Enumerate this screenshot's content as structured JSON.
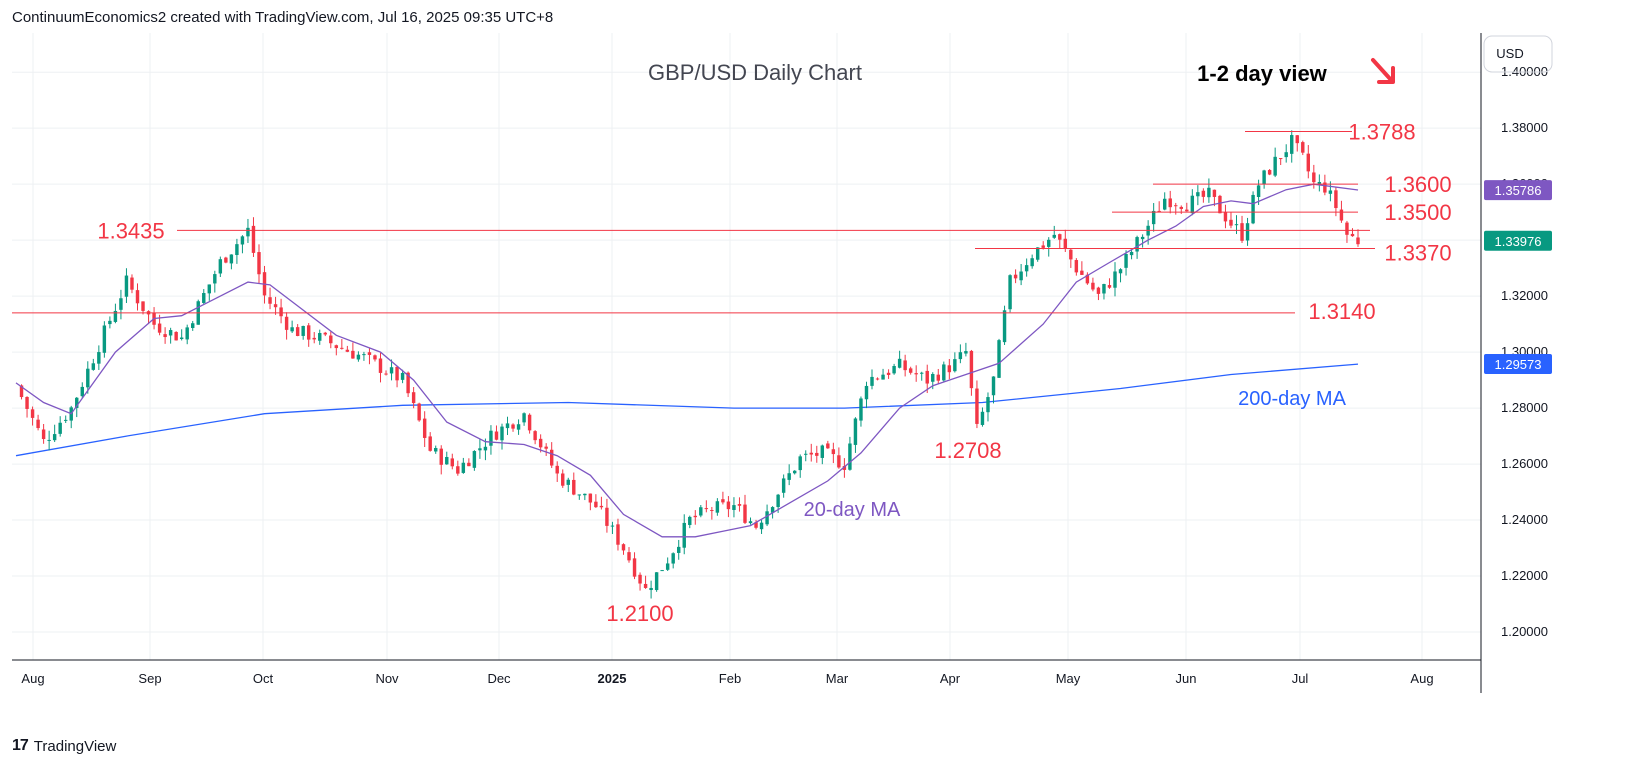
{
  "header": {
    "attribution": "ContinuumEconomics2 created with TradingView.com, Jul 16, 2025 09:35 UTC+8"
  },
  "footer": {
    "logo_glyph": "17",
    "brand": "TradingView"
  },
  "colors": {
    "up": "#089981",
    "down": "#f23645",
    "ma20": "#7e57c2",
    "ma200": "#2962ff",
    "level_line": "#f23645",
    "level_text": "#f23645",
    "price_tag": "#089981",
    "grid": "#eef0f3"
  },
  "chart_data": {
    "type": "candlestick",
    "title": "GBP/USD Daily Chart",
    "view_text": "1-2 day view",
    "view_direction": "down",
    "currency": "USD",
    "x_ticks": [
      "Aug",
      "Sep",
      "Oct",
      "Nov",
      "Dec",
      "2025",
      "Feb",
      "Mar",
      "Apr",
      "May",
      "Jun",
      "Jul",
      "Aug"
    ],
    "ylim": [
      1.19,
      1.414
    ],
    "y_ticks": [
      "1.40000",
      "1.38000",
      "1.36000",
      "1.34000",
      "1.32000",
      "1.30000",
      "1.28000",
      "1.26000",
      "1.24000",
      "1.22000",
      "1.20000"
    ],
    "grid": true,
    "levels": [
      {
        "label": "1.3788",
        "value": 1.3788
      },
      {
        "label": "1.3600",
        "value": 1.36
      },
      {
        "label": "1.3500",
        "value": 1.35
      },
      {
        "label": "1.3435",
        "value": 1.3435
      },
      {
        "label": "1.3370",
        "value": 1.337
      },
      {
        "label": "1.3140",
        "value": 1.314
      }
    ],
    "annotations": [
      "1.2100",
      "1.2708",
      "20-day MA",
      "200-day MA"
    ],
    "price_tags": [
      {
        "label": "1.35786",
        "value": 1.35786,
        "color": "#7e57c2"
      },
      {
        "label": "1.33976",
        "value": 1.33976,
        "color": "#089981"
      },
      {
        "label": "1.29573",
        "value": 1.29573,
        "color": "#2962ff"
      }
    ],
    "anchors": [
      [
        0,
        1.288
      ],
      [
        5,
        1.268
      ],
      [
        10,
        1.28
      ],
      [
        20,
        1.325
      ],
      [
        25,
        1.31
      ],
      [
        30,
        1.305
      ],
      [
        37,
        1.332
      ],
      [
        42,
        1.3435
      ],
      [
        45,
        1.32
      ],
      [
        50,
        1.308
      ],
      [
        55,
        1.305
      ],
      [
        63,
        1.298
      ],
      [
        70,
        1.29
      ],
      [
        75,
        1.265
      ],
      [
        80,
        1.258
      ],
      [
        86,
        1.27
      ],
      [
        92,
        1.278
      ],
      [
        98,
        1.256
      ],
      [
        105,
        1.245
      ],
      [
        110,
        1.23
      ],
      [
        114,
        1.215
      ],
      [
        118,
        1.226
      ],
      [
        122,
        1.24
      ],
      [
        126,
        1.244
      ],
      [
        130,
        1.245
      ],
      [
        134,
        1.238
      ],
      [
        138,
        1.25
      ],
      [
        142,
        1.262
      ],
      [
        146,
        1.264
      ],
      [
        150,
        1.26
      ],
      [
        154,
        1.29
      ],
      [
        160,
        1.295
      ],
      [
        165,
        1.29
      ],
      [
        170,
        1.296
      ],
      [
        172,
        1.3
      ],
      [
        174,
        1.272
      ],
      [
        177,
        1.29
      ],
      [
        180,
        1.325
      ],
      [
        184,
        1.335
      ],
      [
        188,
        1.342
      ],
      [
        192,
        1.33
      ],
      [
        196,
        1.32
      ],
      [
        200,
        1.33
      ],
      [
        204,
        1.342
      ],
      [
        208,
        1.355
      ],
      [
        212,
        1.353
      ],
      [
        216,
        1.356
      ],
      [
        220,
        1.346
      ],
      [
        222,
        1.342
      ],
      [
        225,
        1.36
      ],
      [
        228,
        1.368
      ],
      [
        231,
        1.375
      ],
      [
        233,
        1.369
      ],
      [
        235,
        1.36
      ],
      [
        237,
        1.359
      ],
      [
        239,
        1.352
      ],
      [
        241,
        1.342
      ],
      [
        243,
        1.3398
      ]
    ],
    "ma20": [
      [
        0,
        1.289
      ],
      [
        5,
        1.282
      ],
      [
        10,
        1.278
      ],
      [
        18,
        1.3
      ],
      [
        25,
        1.312
      ],
      [
        30,
        1.313
      ],
      [
        35,
        1.318
      ],
      [
        42,
        1.325
      ],
      [
        46,
        1.324
      ],
      [
        52,
        1.315
      ],
      [
        58,
        1.306
      ],
      [
        66,
        1.3
      ],
      [
        72,
        1.29
      ],
      [
        78,
        1.275
      ],
      [
        85,
        1.268
      ],
      [
        92,
        1.267
      ],
      [
        98,
        1.263
      ],
      [
        104,
        1.256
      ],
      [
        110,
        1.242
      ],
      [
        117,
        1.234
      ],
      [
        123,
        1.234
      ],
      [
        128,
        1.236
      ],
      [
        133,
        1.238
      ],
      [
        140,
        1.246
      ],
      [
        147,
        1.254
      ],
      [
        153,
        1.264
      ],
      [
        160,
        1.28
      ],
      [
        166,
        1.288
      ],
      [
        172,
        1.292
      ],
      [
        178,
        1.296
      ],
      [
        186,
        1.31
      ],
      [
        192,
        1.325
      ],
      [
        198,
        1.332
      ],
      [
        205,
        1.34
      ],
      [
        210,
        1.345
      ],
      [
        215,
        1.352
      ],
      [
        220,
        1.354
      ],
      [
        224,
        1.353
      ],
      [
        230,
        1.358
      ],
      [
        235,
        1.36
      ],
      [
        243,
        1.3579
      ]
    ],
    "ma200": [
      [
        0,
        1.263
      ],
      [
        20,
        1.27
      ],
      [
        45,
        1.278
      ],
      [
        70,
        1.281
      ],
      [
        100,
        1.282
      ],
      [
        130,
        1.28
      ],
      [
        150,
        1.28
      ],
      [
        175,
        1.282
      ],
      [
        200,
        1.287
      ],
      [
        220,
        1.292
      ],
      [
        243,
        1.2957
      ]
    ]
  }
}
